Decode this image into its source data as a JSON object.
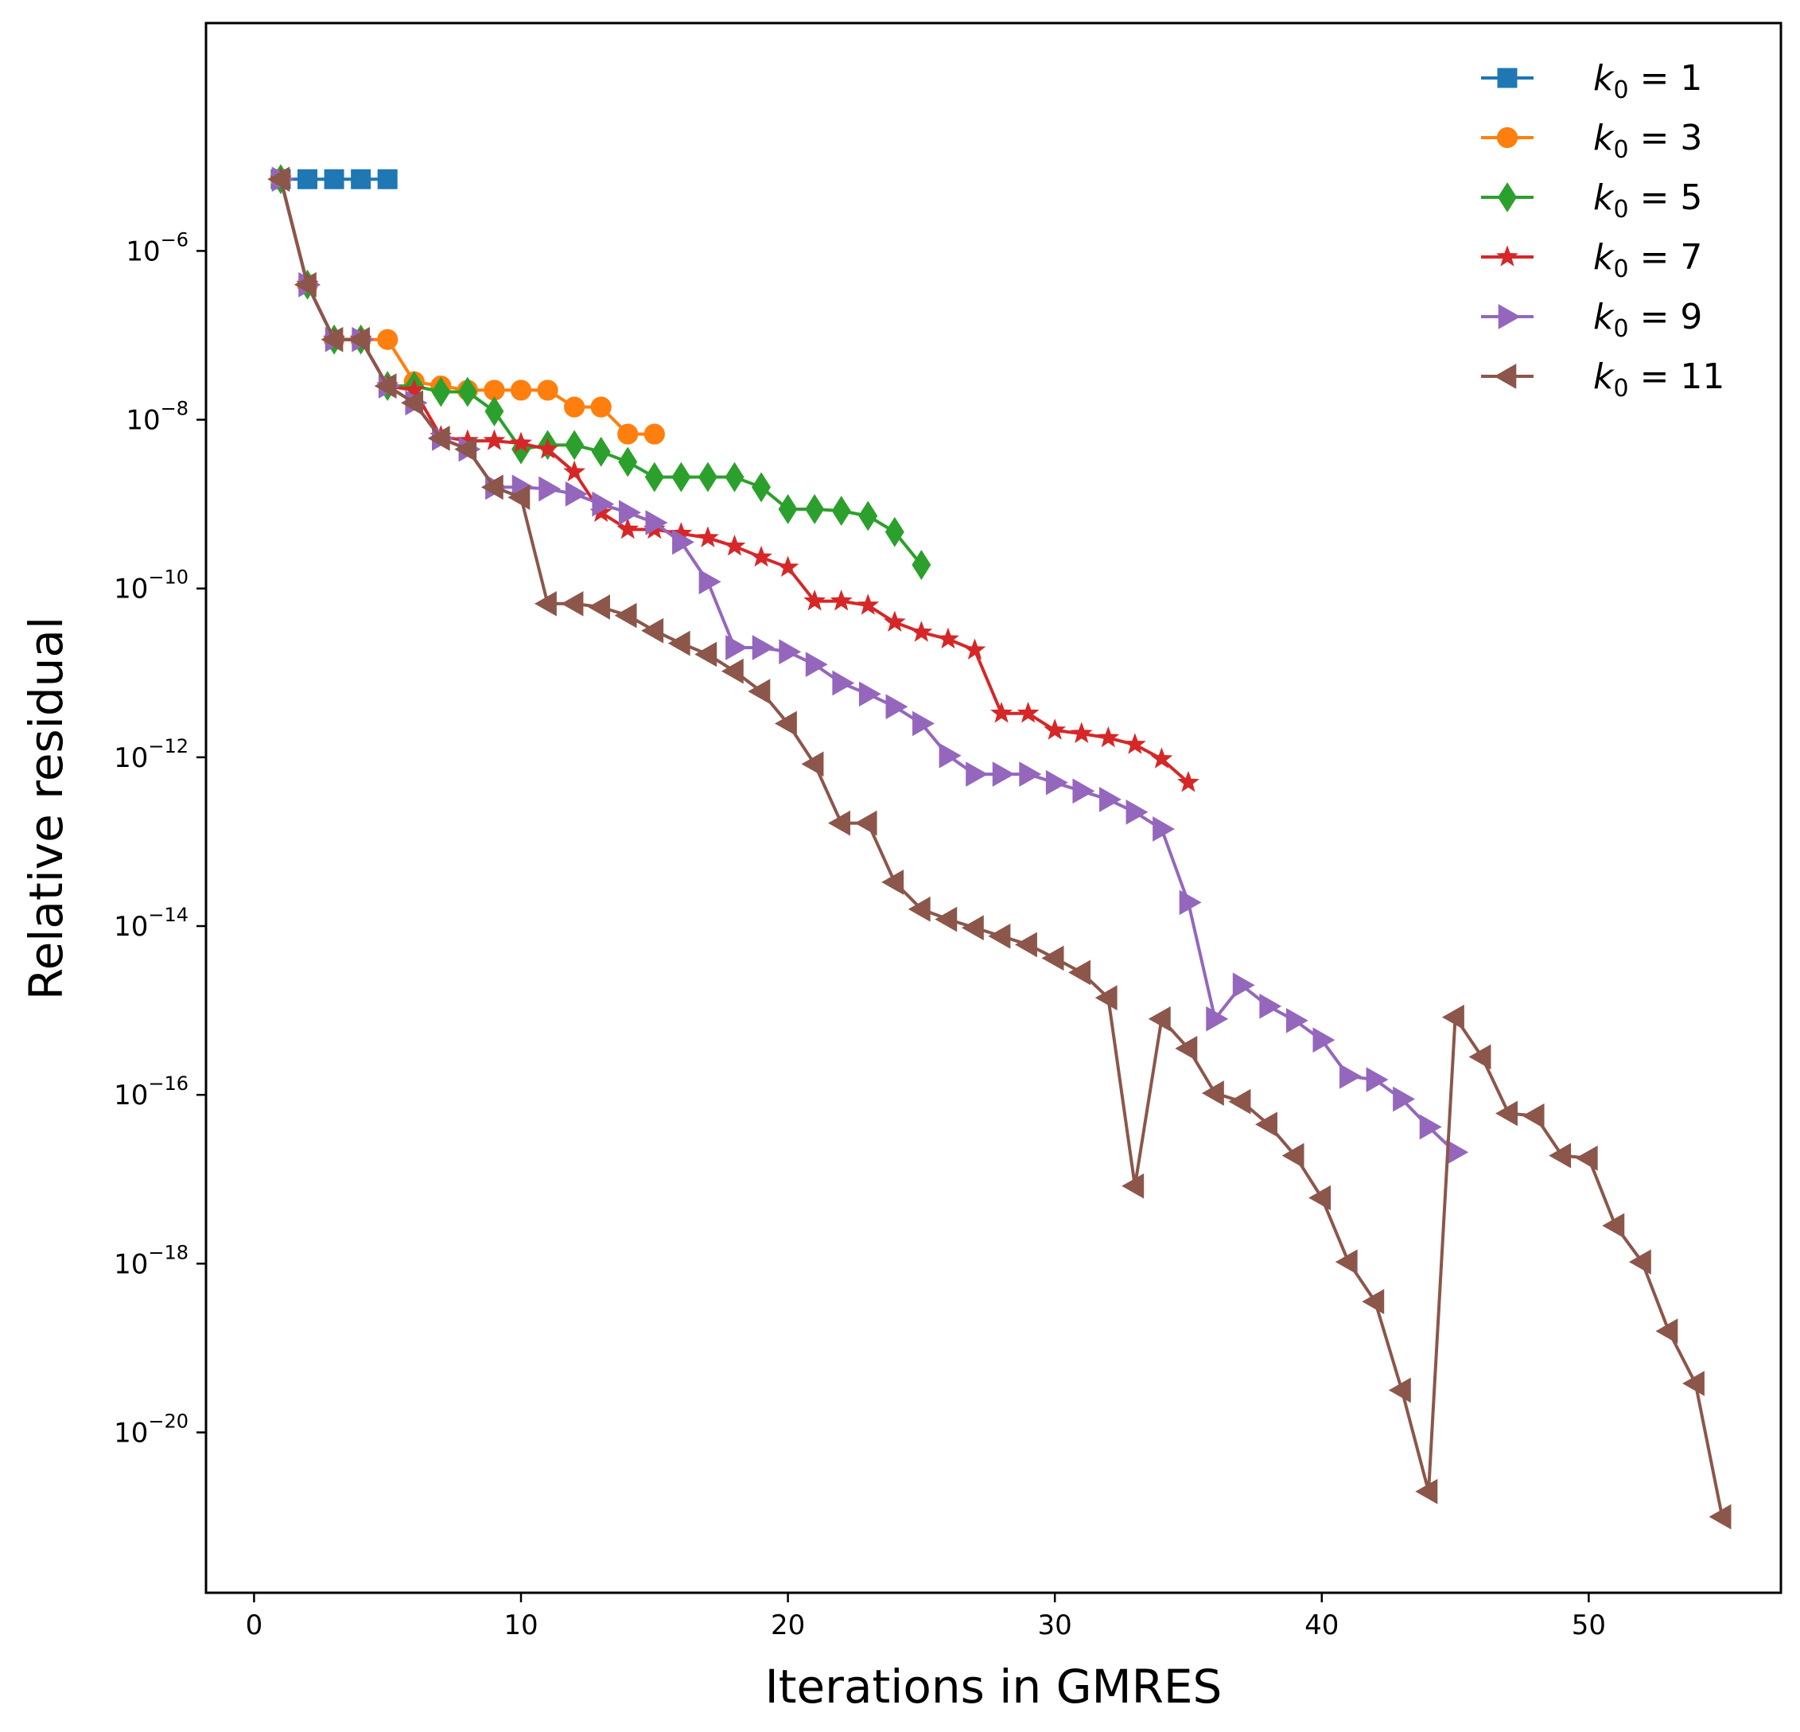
{
  "chart_data": {
    "type": "line",
    "xlabel": "Iterations in GMRES",
    "ylabel": "Relative residual",
    "xlim": [
      -1.8,
      57.2
    ],
    "ylim_log10": [
      -21.9,
      -3.3
    ],
    "y_scale": "log",
    "x_ticks": [
      "0",
      "10",
      "20",
      "30",
      "40",
      "50"
    ],
    "x_tick_values": [
      0,
      10,
      20,
      30,
      40,
      50
    ],
    "y_tick_exponents": [
      "−6",
      "−8",
      "−10",
      "−12",
      "−14",
      "−16",
      "−18",
      "−20"
    ],
    "y_tick_values": [
      -6,
      -8,
      -10,
      -12,
      -14,
      -16,
      -18,
      -20
    ],
    "y_tick_base": "10",
    "grid": false,
    "legend_position": "top-right",
    "legend_prefix": "k",
    "legend_subscript": "0",
    "series": [
      {
        "name": "1",
        "color": "#1f77b4",
        "marker": "square",
        "x": [
          1,
          2,
          3,
          4,
          5
        ],
        "log10_y": [
          -5.15,
          -5.15,
          -5.15,
          -5.15,
          -5.15
        ]
      },
      {
        "name": "3",
        "color": "#ff7f0e",
        "marker": "circle",
        "x": [
          1,
          2,
          3,
          4,
          5,
          6,
          7,
          8,
          9,
          10,
          11,
          12,
          13,
          14,
          15
        ],
        "log10_y": [
          -5.15,
          -6.4,
          -7.05,
          -7.05,
          -7.05,
          -7.55,
          -7.6,
          -7.65,
          -7.65,
          -7.65,
          -7.65,
          -7.85,
          -7.85,
          -8.17,
          -8.17
        ]
      },
      {
        "name": "5",
        "color": "#2ca02c",
        "marker": "diamond",
        "x": [
          1,
          2,
          3,
          4,
          5,
          6,
          7,
          8,
          9,
          10,
          11,
          12,
          13,
          14,
          15,
          16,
          17,
          18,
          19,
          20,
          21,
          22,
          23,
          24,
          25
        ],
        "log10_y": [
          -5.15,
          -6.4,
          -7.05,
          -7.05,
          -7.6,
          -7.6,
          -7.67,
          -7.67,
          -7.9,
          -8.35,
          -8.3,
          -8.3,
          -8.38,
          -8.5,
          -8.68,
          -8.68,
          -8.68,
          -8.68,
          -8.8,
          -9.06,
          -9.06,
          -9.08,
          -9.14,
          -9.33,
          -9.72
        ]
      },
      {
        "name": "7",
        "color": "#d62728",
        "marker": "star",
        "x": [
          1,
          2,
          3,
          4,
          5,
          6,
          7,
          8,
          9,
          10,
          11,
          12,
          13,
          14,
          15,
          16,
          17,
          18,
          19,
          20,
          21,
          22,
          23,
          24,
          25,
          26,
          27,
          28,
          29,
          30,
          31,
          32,
          33,
          34,
          35
        ],
        "log10_y": [
          -5.15,
          -6.4,
          -7.05,
          -7.05,
          -7.6,
          -7.65,
          -8.2,
          -8.25,
          -8.25,
          -8.28,
          -8.35,
          -8.62,
          -9.1,
          -9.3,
          -9.3,
          -9.35,
          -9.4,
          -9.5,
          -9.63,
          -9.75,
          -10.15,
          -10.15,
          -10.2,
          -10.4,
          -10.52,
          -10.6,
          -10.73,
          -11.48,
          -11.48,
          -11.68,
          -11.72,
          -11.77,
          -11.85,
          -12.02,
          -12.3
        ]
      },
      {
        "name": "9",
        "color": "#9467bd",
        "marker": "triangle-right",
        "x": [
          1,
          2,
          3,
          4,
          5,
          6,
          7,
          8,
          9,
          10,
          11,
          12,
          13,
          14,
          15,
          16,
          17,
          18,
          19,
          20,
          21,
          22,
          23,
          24,
          25,
          26,
          27,
          28,
          29,
          30,
          31,
          32,
          33,
          34,
          35,
          36,
          37,
          38,
          39,
          40,
          41,
          42,
          43,
          44,
          45
        ],
        "log10_y": [
          -5.15,
          -6.4,
          -7.05,
          -7.05,
          -7.6,
          -7.8,
          -8.22,
          -8.35,
          -8.8,
          -8.8,
          -8.82,
          -8.88,
          -9.0,
          -9.1,
          -9.22,
          -9.45,
          -9.92,
          -10.7,
          -10.7,
          -10.75,
          -10.9,
          -11.12,
          -11.25,
          -11.4,
          -11.6,
          -11.98,
          -12.2,
          -12.2,
          -12.2,
          -12.3,
          -12.4,
          -12.5,
          -12.65,
          -12.85,
          -13.72,
          -15.1,
          -14.7,
          -14.95,
          -15.12,
          -15.35,
          -15.78,
          -15.82,
          -16.05,
          -16.38,
          -16.68
        ]
      },
      {
        "name": "11",
        "color": "#8c564b",
        "marker": "triangle-left",
        "x": [
          1,
          2,
          3,
          4,
          5,
          6,
          7,
          8,
          9,
          10,
          11,
          12,
          13,
          14,
          15,
          16,
          17,
          18,
          19,
          20,
          21,
          22,
          23,
          24,
          25,
          26,
          27,
          28,
          29,
          30,
          31,
          32,
          33,
          34,
          35,
          36,
          37,
          38,
          39,
          40,
          41,
          42,
          43,
          44,
          45,
          46,
          47,
          48,
          49,
          50,
          51,
          52,
          53,
          54,
          55
        ],
        "log10_y": [
          -5.15,
          -6.4,
          -7.05,
          -7.05,
          -7.6,
          -7.8,
          -8.22,
          -8.35,
          -8.8,
          -8.92,
          -10.18,
          -10.18,
          -10.22,
          -10.32,
          -10.5,
          -10.65,
          -10.78,
          -10.98,
          -11.22,
          -11.6,
          -12.08,
          -12.78,
          -12.78,
          -13.48,
          -13.8,
          -13.92,
          -14.02,
          -14.12,
          -14.22,
          -14.38,
          -14.55,
          -14.85,
          -17.08,
          -15.1,
          -15.45,
          -15.98,
          -16.08,
          -16.35,
          -16.72,
          -17.22,
          -17.98,
          -18.45,
          -19.5,
          -20.7,
          -15.08,
          -15.55,
          -16.22,
          -16.25,
          -16.72,
          -16.75,
          -17.55,
          -17.98,
          -18.8,
          -19.42,
          -21.0
        ]
      }
    ]
  }
}
